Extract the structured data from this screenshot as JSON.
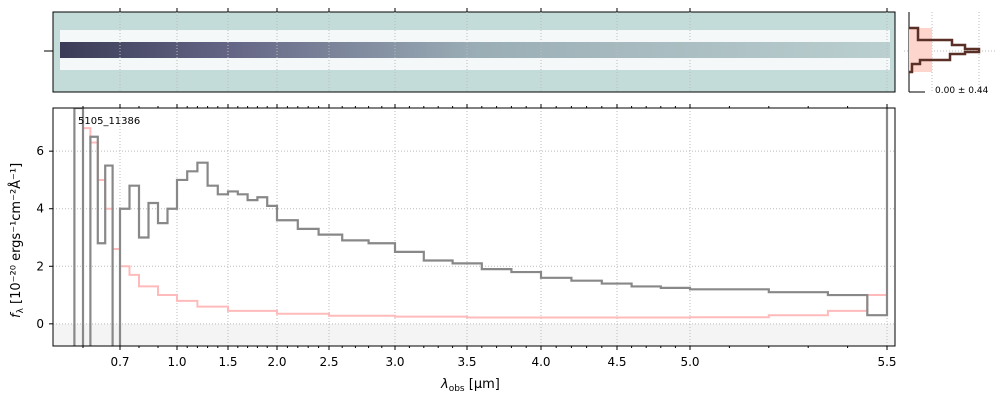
{
  "chart_data": {
    "type": "line",
    "label": "5105_11386",
    "xlabel": "λobs [μm]",
    "xlabel_sym": "λ",
    "xlabel_sub": "obs",
    "xlabel_unit": " [μm]",
    "ylabel": "fλ [10^-20 ergs^-1 cm^-2 Å^-1]",
    "ylabel_text": "f",
    "ylabel_rest": " [10⁻²⁰ ergs⁻¹cm⁻²Å⁻¹]",
    "xticks": [
      "0.7",
      "1.0",
      "1.5",
      "2.0",
      "2.5",
      "3.0",
      "3.5",
      "4.0",
      "4.5",
      "5.0",
      "5.5"
    ],
    "yticks": [
      "0",
      "2",
      "4",
      "6"
    ],
    "ylim": [
      -0.77,
      7.5
    ],
    "grid": true,
    "hist_label": "0.00 ± 0.44",
    "series": [
      {
        "name": "flux",
        "color": "#888888",
        "x": [
          0.56,
          0.58,
          0.6,
          0.62,
          0.64,
          0.66,
          0.68,
          0.7,
          0.75,
          0.8,
          0.85,
          0.9,
          0.95,
          1.0,
          1.1,
          1.2,
          1.3,
          1.4,
          1.5,
          1.6,
          1.7,
          1.8,
          1.9,
          2.0,
          2.2,
          2.4,
          2.6,
          2.8,
          3.0,
          3.2,
          3.4,
          3.6,
          3.8,
          4.0,
          4.2,
          4.4,
          4.6,
          4.8,
          5.0,
          5.2,
          5.35,
          5.45,
          5.5
        ],
        "y": [
          -1,
          7.5,
          -1,
          6.5,
          2.8,
          5.5,
          -0.8,
          4.0,
          4.8,
          3.0,
          4.2,
          3.5,
          4.0,
          5.0,
          5.3,
          5.6,
          4.8,
          4.5,
          4.6,
          4.5,
          4.3,
          4.4,
          4.1,
          3.6,
          3.3,
          3.1,
          2.9,
          2.8,
          2.5,
          2.2,
          2.1,
          1.9,
          1.8,
          1.6,
          1.5,
          1.4,
          1.3,
          1.25,
          1.2,
          1.1,
          1.0,
          0.3,
          7.5
        ]
      },
      {
        "name": "error",
        "color": "#ffbbbb",
        "x": [
          0.6,
          0.62,
          0.64,
          0.66,
          0.68,
          0.7,
          0.75,
          0.8,
          0.9,
          1.0,
          1.2,
          1.5,
          2.0,
          2.5,
          3.0,
          3.5,
          4.0,
          4.5,
          5.0,
          5.2,
          5.35,
          5.45,
          5.5
        ],
        "y": [
          6.8,
          6.3,
          5.0,
          4.0,
          2.6,
          2.0,
          1.7,
          1.3,
          1.0,
          0.8,
          0.6,
          0.45,
          0.35,
          0.28,
          0.25,
          0.22,
          0.22,
          0.22,
          0.23,
          0.3,
          0.45,
          1.0,
          7.5
        ]
      }
    ]
  }
}
